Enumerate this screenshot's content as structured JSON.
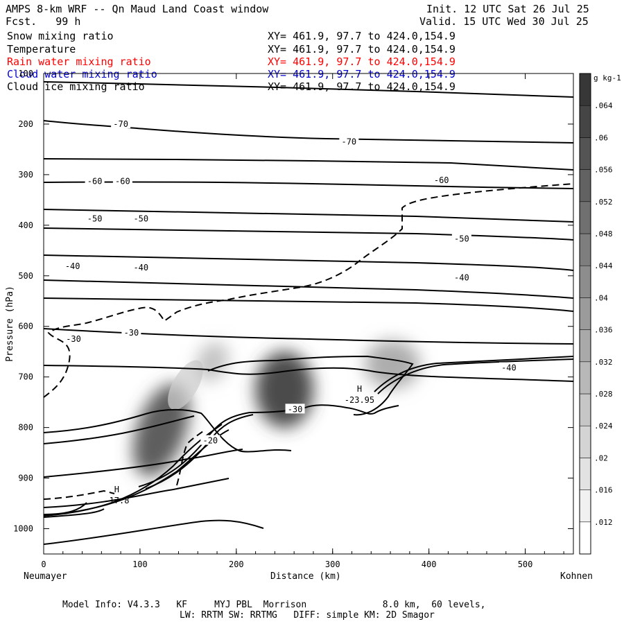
{
  "header": {
    "title": "AMPS 8-km WRF -- Qn Maud Land Coast window",
    "forecast": "Fcst.   99 h",
    "init": "Init. 12 UTC Sat 26 Jul 25",
    "valid": "Valid. 15 UTC Wed 30 Jul 25"
  },
  "fields": [
    {
      "name": "Snow mixing ratio",
      "xy": "XY= 461.9, 97.7 to 424.0,154.9",
      "color": "#000000"
    },
    {
      "name": "Temperature",
      "xy": "XY= 461.9, 97.7 to 424.0,154.9",
      "color": "#000000"
    },
    {
      "name": "Rain water mixing ratio",
      "xy": "XY= 461.9, 97.7 to 424.0,154.9",
      "color": "#ff0000"
    },
    {
      "name": "Cloud water mixing ratio",
      "xy": "XY= 461.9, 97.7 to 424.0,154.9",
      "color": "#0000cc"
    },
    {
      "name": "Cloud ice mixing ratio",
      "xy": "XY= 461.9, 97.7 to 424.0,154.9",
      "color": "#000000"
    }
  ],
  "footer": {
    "line1": "Model Info: V4.3.3   KF     MYJ PBL  Morrison              8.0 km,  60 levels,",
    "line2": "LW: RRTM SW: RRTMG   DIFF: simple KM: 2D Smagor"
  },
  "chart_data": {
    "type": "heatmap",
    "xlabel": "Distance (km)",
    "ylabel": "Pressure (hPa)",
    "x_left_label": "Neumayer",
    "x_right_label": "Kohnen",
    "xlim": [
      0,
      550
    ],
    "ylim": [
      1050,
      100
    ],
    "x_ticks": [
      0,
      100,
      200,
      300,
      400,
      500
    ],
    "y_ticks": [
      100,
      200,
      300,
      400,
      500,
      600,
      700,
      800,
      900,
      1000
    ],
    "colorbar": {
      "units": "g kg-1",
      "levels": [
        0.012,
        0.016,
        0.02,
        0.024,
        0.028,
        0.032,
        0.036,
        0.04,
        0.044,
        0.048,
        0.052,
        0.056,
        0.06,
        0.064
      ],
      "labels": [
        ".012",
        ".016",
        ".02",
        ".024",
        ".028",
        ".032",
        ".036",
        ".04",
        ".044",
        ".048",
        ".052",
        ".056",
        ".06",
        ".064"
      ]
    },
    "snow_maxima": [
      {
        "x": 122,
        "p": 805,
        "value": 0.06
      },
      {
        "x": 250,
        "p": 725,
        "value": 0.066
      },
      {
        "x": 362,
        "p": 675,
        "value": 0.03
      },
      {
        "x": 175,
        "p": 670,
        "value": 0.022
      }
    ],
    "temperature_labels": [
      {
        "x": 80,
        "p": 200,
        "text": "-70"
      },
      {
        "x": 317,
        "p": 235,
        "text": "-70"
      },
      {
        "x": 53,
        "p": 313,
        "text": "-60"
      },
      {
        "x": 82,
        "p": 313,
        "text": "-60"
      },
      {
        "x": 413,
        "p": 311,
        "text": "-60"
      },
      {
        "x": 53,
        "p": 387,
        "text": "-50"
      },
      {
        "x": 101,
        "p": 387,
        "text": "-50"
      },
      {
        "x": 434,
        "p": 427,
        "text": "-50"
      },
      {
        "x": 30,
        "p": 481,
        "text": "-40"
      },
      {
        "x": 101,
        "p": 484,
        "text": "-40"
      },
      {
        "x": 434,
        "p": 504,
        "text": "-40"
      },
      {
        "x": 483,
        "p": 682,
        "text": "-40"
      },
      {
        "x": 31,
        "p": 625,
        "text": "-30"
      },
      {
        "x": 91,
        "p": 613,
        "text": "-30"
      },
      {
        "x": 261,
        "p": 764,
        "text": "-30"
      },
      {
        "x": 173,
        "p": 826,
        "text": "-20"
      }
    ],
    "extrema": [
      {
        "x": 73,
        "p": 931,
        "label": "H",
        "value": "-17.8"
      },
      {
        "x": 325,
        "p": 732,
        "label": "H",
        "value": "-23.95"
      }
    ]
  }
}
